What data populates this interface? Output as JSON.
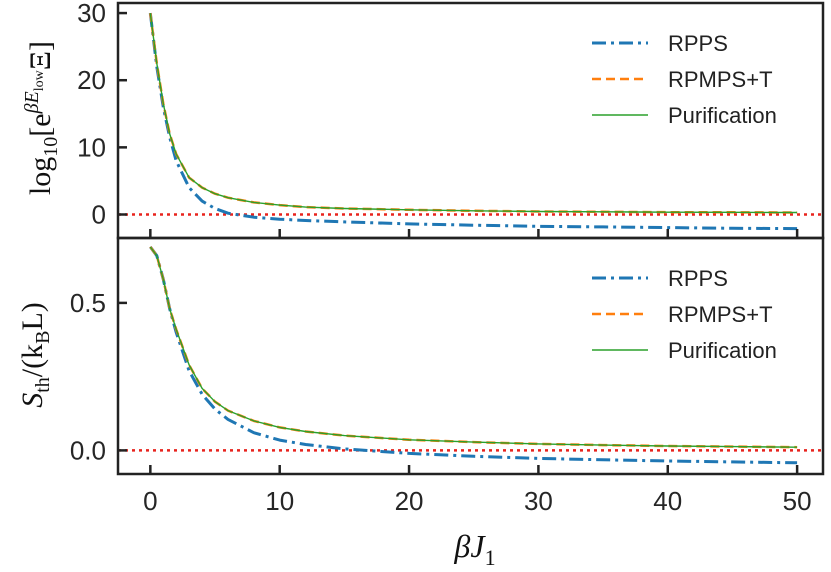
{
  "colors": {
    "rpps": "#1f77b4",
    "rpmps_t": "#ff7f0e",
    "purification": "#2ca02c",
    "zero_line": "#e8231d",
    "axes": "#222222"
  },
  "chart_data": [
    {
      "type": "line",
      "panel": "top",
      "ylabel": {
        "pre": "log",
        "sub": "10",
        "mid": "[e",
        "sup": "βE",
        "supsub": "low",
        "post": "Ξ]"
      },
      "xlim": [
        -2.5,
        52
      ],
      "ylim": [
        -3.5,
        31.5
      ],
      "yticks": [
        0,
        10,
        20,
        30
      ],
      "ytick_labels": [
        "0",
        "10",
        "20",
        "30"
      ],
      "xticks": [
        0,
        10,
        20,
        30,
        40,
        50
      ],
      "show_xtick_labels": false,
      "zero_line": 0,
      "legend": "top-right",
      "series": [
        {
          "name": "RPPS",
          "style": "dashdot",
          "x": [
            0,
            0.5,
            1,
            1.5,
            2,
            3,
            4,
            5,
            6,
            8,
            10,
            12,
            15,
            20,
            25,
            30,
            35,
            40,
            45,
            50
          ],
          "y": [
            30,
            22,
            16,
            11.5,
            8,
            4,
            2,
            0.9,
            0.2,
            -0.4,
            -0.7,
            -0.9,
            -1.1,
            -1.4,
            -1.6,
            -1.75,
            -1.85,
            -1.95,
            -2.05,
            -2.1
          ]
        },
        {
          "name": "RPMPS+T",
          "style": "dashed",
          "x": [
            0,
            0.5,
            1,
            1.5,
            2,
            3,
            4,
            5,
            6,
            8,
            10,
            12,
            15,
            20,
            25,
            30,
            35,
            40,
            45,
            50
          ],
          "y": [
            30,
            22.5,
            16.5,
            12,
            9,
            5.5,
            4,
            3.1,
            2.5,
            1.8,
            1.4,
            1.1,
            0.9,
            0.7,
            0.55,
            0.45,
            0.4,
            0.35,
            0.33,
            0.3
          ]
        },
        {
          "name": "Purification",
          "style": "solid",
          "x": [
            0,
            0.5,
            1,
            1.5,
            2,
            3,
            4,
            5,
            6,
            8,
            10,
            12,
            15,
            20,
            25,
            30,
            35,
            40,
            45,
            50
          ],
          "y": [
            30,
            22.5,
            16.5,
            12,
            9,
            5.5,
            4,
            3.1,
            2.5,
            1.8,
            1.4,
            1.1,
            0.9,
            0.7,
            0.55,
            0.45,
            0.4,
            0.35,
            0.33,
            0.3
          ]
        }
      ]
    },
    {
      "type": "line",
      "panel": "bottom",
      "ylabel": {
        "pre": "S",
        "sub": "th",
        "post": "/(k",
        "sub2": "B",
        "post2": "L)"
      },
      "xlabel": {
        "pre": "βJ",
        "sub": "1"
      },
      "xlim": [
        -2.5,
        52
      ],
      "ylim": [
        -0.08,
        0.72
      ],
      "yticks": [
        0.0,
        0.5
      ],
      "ytick_labels": [
        "0.0",
        "0.5"
      ],
      "xticks": [
        0,
        10,
        20,
        30,
        40,
        50
      ],
      "xtick_labels": [
        "0",
        "10",
        "20",
        "30",
        "40",
        "50"
      ],
      "zero_line": 0,
      "legend": "top-right",
      "series": [
        {
          "name": "RPPS",
          "style": "dashdot",
          "x": [
            0,
            0.5,
            1,
            1.5,
            2,
            3,
            4,
            5,
            6,
            8,
            10,
            12,
            15,
            20,
            25,
            30,
            35,
            40,
            45,
            50
          ],
          "y": [
            0.69,
            0.66,
            0.58,
            0.48,
            0.4,
            0.27,
            0.19,
            0.14,
            0.105,
            0.06,
            0.035,
            0.02,
            0.005,
            -0.01,
            -0.02,
            -0.027,
            -0.032,
            -0.036,
            -0.039,
            -0.042
          ]
        },
        {
          "name": "RPMPS+T",
          "style": "dashed",
          "x": [
            0,
            0.5,
            1,
            1.5,
            2,
            3,
            4,
            5,
            6,
            8,
            10,
            12,
            15,
            20,
            25,
            30,
            35,
            40,
            45,
            50
          ],
          "y": [
            0.69,
            0.66,
            0.58,
            0.48,
            0.41,
            0.29,
            0.21,
            0.165,
            0.135,
            0.1,
            0.078,
            0.064,
            0.05,
            0.036,
            0.028,
            0.022,
            0.018,
            0.015,
            0.013,
            0.011
          ]
        },
        {
          "name": "Purification",
          "style": "solid",
          "x": [
            0,
            0.5,
            1,
            1.5,
            2,
            3,
            4,
            5,
            6,
            8,
            10,
            12,
            15,
            20,
            25,
            30,
            35,
            40,
            45,
            50
          ],
          "y": [
            0.69,
            0.66,
            0.58,
            0.48,
            0.41,
            0.29,
            0.21,
            0.165,
            0.135,
            0.1,
            0.078,
            0.064,
            0.05,
            0.036,
            0.028,
            0.022,
            0.018,
            0.015,
            0.013,
            0.011
          ]
        }
      ]
    }
  ]
}
